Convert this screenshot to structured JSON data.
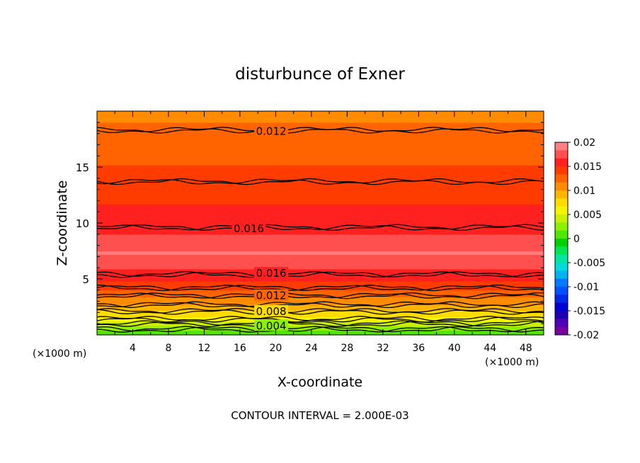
{
  "chart_data": {
    "type": "heatmap",
    "title": "disturbunce of Exner",
    "xlabel": "X-coordinate",
    "ylabel": "Z-coordinate",
    "x_unit_left": "(×1000 m)",
    "x_unit_right": "(×1000 m)",
    "footer": "CONTOUR INTERVAL = 2.000E-03",
    "xlim": [
      0,
      50
    ],
    "ylim": [
      0,
      20
    ],
    "x_ticks": [
      "4",
      "8",
      "12",
      "16",
      "20",
      "24",
      "28",
      "32",
      "36",
      "40",
      "44",
      "48"
    ],
    "y_ticks": [
      "5",
      "10",
      "15"
    ],
    "colorbar": {
      "range": [
        -0.02,
        0.02
      ],
      "tick_labels": [
        "0.02",
        "0.015",
        "0.01",
        "0.005",
        "0",
        "-0.005",
        "-0.01",
        "-0.015",
        "-0.02"
      ],
      "colors": [
        "#ff8080",
        "#ff5050",
        "#ff2020",
        "#ff3c00",
        "#ff6400",
        "#ff8c00",
        "#ffb400",
        "#ffdc00",
        "#f5f500",
        "#c8f000",
        "#8cf000",
        "#50e600",
        "#00d200",
        "#00e650",
        "#00e6a0",
        "#00dcdc",
        "#00b4f0",
        "#0078ff",
        "#0050ff",
        "#0028e6",
        "#0000d2",
        "#1e00b4",
        "#5000b4",
        "#7800a0"
      ]
    },
    "contour_labels": [
      {
        "text": "0.012",
        "x": 19.5,
        "z": 18.2
      },
      {
        "text": "0.016",
        "x": 17.0,
        "z": 9.5
      },
      {
        "text": "0.016",
        "x": 19.5,
        "z": 5.5
      },
      {
        "text": "0.012",
        "x": 19.5,
        "z": 3.5
      },
      {
        "text": "0.008",
        "x": 19.5,
        "z": 2.1
      },
      {
        "text": "0.004",
        "x": 19.5,
        "z": 0.8
      }
    ],
    "contour_levels": [
      0.002,
      0.004,
      0.006,
      0.008,
      0.01,
      0.012,
      0.014,
      0.016
    ],
    "profile": [
      {
        "z": 0.0,
        "value": 0.0
      },
      {
        "z": 0.5,
        "value": 0.002
      },
      {
        "z": 1.0,
        "value": 0.004
      },
      {
        "z": 1.4,
        "value": 0.006
      },
      {
        "z": 2.1,
        "value": 0.008
      },
      {
        "z": 2.7,
        "value": 0.01
      },
      {
        "z": 3.5,
        "value": 0.012
      },
      {
        "z": 4.2,
        "value": 0.014
      },
      {
        "z": 5.4,
        "value": 0.016
      },
      {
        "z": 7.3,
        "value": 0.0185
      },
      {
        "z": 9.6,
        "value": 0.016
      },
      {
        "z": 13.7,
        "value": 0.014
      },
      {
        "z": 18.3,
        "value": 0.012
      },
      {
        "z": 20.0,
        "value": 0.0112
      }
    ]
  }
}
